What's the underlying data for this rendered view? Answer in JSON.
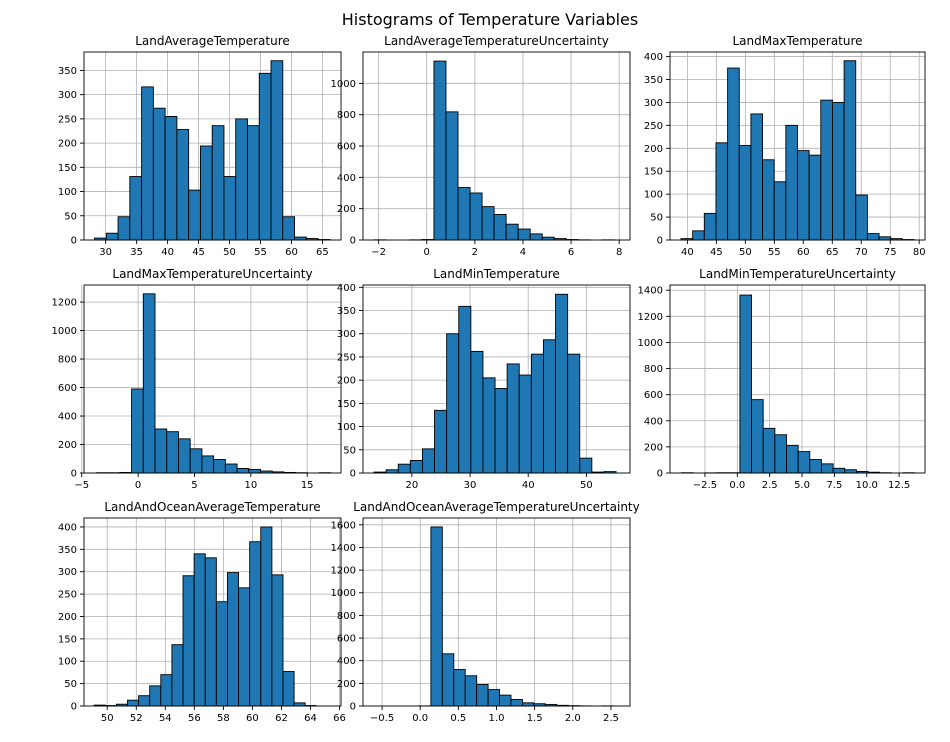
{
  "figure": {
    "title": "Histograms of Temperature Variables"
  },
  "style": {
    "bar_fill": "#1f77b4",
    "bar_edge": "#000000",
    "grid": "#b0b0b0"
  },
  "chart_data": [
    {
      "type": "bar",
      "title": "LandAverageTemperature",
      "bins": {
        "start": 28.2,
        "width": 1.9,
        "count": 20
      },
      "values": [
        4,
        14,
        48,
        131,
        316,
        272,
        255,
        228,
        103,
        194,
        236,
        131,
        250,
        236,
        344,
        370,
        48,
        6,
        3,
        1
      ],
      "xlim": [
        26.5,
        68
      ],
      "ylim": [
        0,
        388
      ],
      "xticks": [
        30,
        35,
        40,
        45,
        50,
        55,
        60,
        65
      ],
      "yticks": [
        0,
        50,
        100,
        150,
        200,
        250,
        300,
        350
      ],
      "grid": true
    },
    {
      "type": "bar",
      "title": "LandAverageTemperatureUncertainty",
      "bins": {
        "start": -2.2,
        "width": 0.5,
        "count": 20
      },
      "values": [
        1,
        0,
        0,
        1,
        3,
        1142,
        818,
        335,
        300,
        213,
        163,
        101,
        70,
        39,
        18,
        9,
        3,
        1,
        0,
        1
      ],
      "xlim": [
        -2.65,
        8.45
      ],
      "ylim": [
        0,
        1200
      ],
      "xticks": [
        -2,
        0,
        2,
        4,
        6,
        8
      ],
      "yticks": [
        0,
        200,
        400,
        600,
        800,
        1000
      ],
      "grid": true
    },
    {
      "type": "bar",
      "title": "LandMaxTemperature",
      "bins": {
        "start": 38.9,
        "width": 2.01,
        "count": 20
      },
      "values": [
        3,
        20,
        58,
        212,
        375,
        206,
        275,
        175,
        127,
        250,
        195,
        185,
        305,
        300,
        391,
        98,
        14,
        7,
        3,
        1
      ],
      "xlim": [
        37,
        81
      ],
      "ylim": [
        0,
        410
      ],
      "xticks": [
        40,
        45,
        50,
        55,
        60,
        65,
        70,
        75,
        80
      ],
      "yticks": [
        0,
        50,
        100,
        150,
        200,
        250,
        300,
        350,
        400
      ],
      "grid": true
    },
    {
      "type": "bar",
      "title": "LandMaxTemperatureUncertainty",
      "bins": {
        "start": -3.7,
        "width": 1.04,
        "count": 20
      },
      "values": [
        2,
        2,
        4,
        590,
        1258,
        309,
        290,
        240,
        170,
        120,
        95,
        63,
        32,
        25,
        14,
        8,
        4,
        2,
        0,
        2
      ],
      "xlim": [
        -4.8,
        18.0
      ],
      "ylim": [
        0,
        1320
      ],
      "xticks": [
        -5,
        0,
        5,
        10,
        15
      ],
      "yticks": [
        0,
        200,
        400,
        600,
        800,
        1000,
        1200
      ],
      "grid": true
    },
    {
      "type": "bar",
      "title": "LandMinTemperature",
      "bins": {
        "start": 13.5,
        "width": 2.08,
        "count": 20
      },
      "values": [
        2,
        7,
        19,
        27,
        52,
        135,
        300,
        359,
        262,
        205,
        182,
        235,
        211,
        256,
        287,
        385,
        256,
        32,
        2,
        3
      ],
      "xlim": [
        11.6,
        57.5
      ],
      "ylim": [
        0,
        405
      ],
      "xticks": [
        20,
        30,
        40,
        50
      ],
      "yticks": [
        0,
        50,
        100,
        150,
        200,
        250,
        300,
        350,
        400
      ],
      "grid": true
    },
    {
      "type": "bar",
      "title": "LandMinTemperatureUncertainty",
      "bins": {
        "start": -4.3,
        "width": 0.9,
        "count": 20
      },
      "values": [
        2,
        0,
        1,
        2,
        2,
        1363,
        562,
        342,
        293,
        212,
        164,
        103,
        70,
        36,
        25,
        12,
        6,
        2,
        0,
        2
      ],
      "xlim": [
        -5.2,
        14.5
      ],
      "ylim": [
        0,
        1440
      ],
      "xticks": [
        -2.5,
        0.0,
        2.5,
        5.0,
        7.5,
        10.0,
        12.5
      ],
      "xtick_labels": [
        "−2.5",
        "0.0",
        "2.5",
        "5.0",
        "7.5",
        "10.0",
        "12.5"
      ],
      "yticks": [
        0,
        200,
        400,
        600,
        800,
        1000,
        1200,
        1400
      ],
      "grid": true
    },
    {
      "type": "bar",
      "title": "LandAndOceanAverageTemperature",
      "bins": {
        "start": 49.1,
        "width": 0.765,
        "count": 20
      },
      "values": [
        2,
        1,
        4,
        13,
        23,
        45,
        70,
        137,
        291,
        340,
        331,
        233,
        298,
        264,
        367,
        400,
        293,
        77,
        7,
        1
      ],
      "xlim": [
        48.4,
        66.1
      ],
      "ylim": [
        0,
        420
      ],
      "xticks": [
        50,
        52,
        54,
        56,
        58,
        60,
        62,
        64,
        66
      ],
      "yticks": [
        0,
        50,
        100,
        150,
        200,
        250,
        300,
        350,
        400
      ],
      "grid": true
    },
    {
      "type": "bar",
      "title": "LandAndOceanAverageTemperatureUncertainty",
      "bins": {
        "start": -0.46,
        "width": 0.15,
        "count": 20
      },
      "values": [
        0,
        0,
        0,
        1,
        1581,
        461,
        322,
        267,
        190,
        145,
        96,
        58,
        28,
        20,
        14,
        6,
        3,
        1,
        0,
        1
      ],
      "xlim": [
        -0.75,
        2.75
      ],
      "ylim": [
        0,
        1660
      ],
      "xticks": [
        -0.5,
        0.0,
        0.5,
        1.0,
        1.5,
        2.0,
        2.5
      ],
      "xtick_labels": [
        "−0.5",
        "0.0",
        "0.5",
        "1.0",
        "1.5",
        "2.0",
        "2.5"
      ],
      "yticks": [
        0,
        200,
        400,
        600,
        800,
        1000,
        1200,
        1400,
        1600
      ],
      "grid": true
    }
  ]
}
